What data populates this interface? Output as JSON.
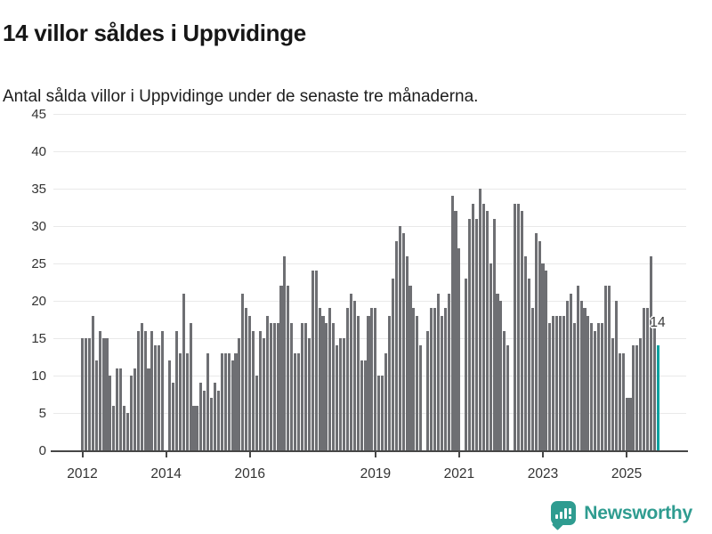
{
  "header": {
    "title": "14 villor såldes i Uppvidinge",
    "subtitle": "Antal sålda villor i Uppvidinge under de senaste tre månaderna."
  },
  "chart_data": {
    "type": "bar",
    "title": "14 villor såldes i Uppvidinge",
    "subtitle": "Antal sålda villor i Uppvidinge under de senaste tre månaderna.",
    "x_unit": "month",
    "x_start": "2012-01",
    "zero_means_no_bar": true,
    "values": [
      15,
      15,
      15,
      18,
      12,
      16,
      15,
      15,
      10,
      6,
      11,
      11,
      6,
      5,
      10,
      11,
      16,
      17,
      16,
      11,
      16,
      14,
      14,
      16,
      0,
      12,
      9,
      16,
      13,
      21,
      13,
      17,
      6,
      6,
      9,
      8,
      13,
      7,
      9,
      8,
      13,
      13,
      13,
      12,
      13,
      15,
      21,
      19,
      18,
      16,
      10,
      16,
      15,
      18,
      17,
      17,
      17,
      22,
      26,
      22,
      17,
      13,
      13,
      17,
      17,
      15,
      24,
      24,
      19,
      18,
      17,
      19,
      17,
      14,
      15,
      15,
      19,
      21,
      20,
      18,
      12,
      12,
      18,
      19,
      19,
      10,
      10,
      13,
      18,
      23,
      28,
      30,
      29,
      26,
      22,
      19,
      18,
      14,
      0,
      16,
      19,
      19,
      21,
      18,
      19,
      21,
      34,
      32,
      27,
      0,
      23,
      31,
      33,
      31,
      35,
      33,
      32,
      25,
      31,
      21,
      20,
      16,
      14,
      0,
      33,
      33,
      32,
      26,
      23,
      19,
      29,
      28,
      25,
      24,
      17,
      18,
      18,
      18,
      18,
      20,
      21,
      17,
      22,
      20,
      19,
      18,
      17,
      16,
      17,
      17,
      22,
      22,
      15,
      20,
      13,
      13,
      7,
      7,
      14,
      14,
      15,
      19,
      19,
      26,
      17,
      14
    ],
    "highlight_last": true,
    "highlight_value": 14,
    "annotation": {
      "text": "14"
    },
    "bar_color": "#6e6f73",
    "highlight_color": "#0aa2a0",
    "ylim": [
      0,
      45
    ],
    "yticks": [
      0,
      5,
      10,
      15,
      20,
      25,
      30,
      35,
      40,
      45
    ],
    "xticks": [
      {
        "label": "2012",
        "month_index": 0
      },
      {
        "label": "2014",
        "month_index": 24
      },
      {
        "label": "2016",
        "month_index": 48
      },
      {
        "label": "2019",
        "month_index": 84
      },
      {
        "label": "2021",
        "month_index": 108
      },
      {
        "label": "2023",
        "month_index": 132
      },
      {
        "label": "2025",
        "month_index": 156
      }
    ],
    "grid": true,
    "legend": "none"
  },
  "footer": {
    "brand": "Newsworthy",
    "brand_color": "#2f9c90"
  }
}
